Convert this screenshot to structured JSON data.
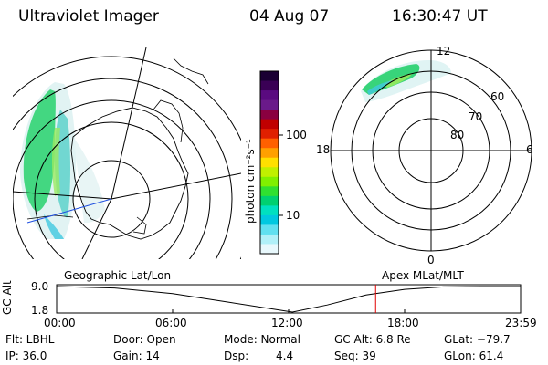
{
  "header": {
    "title": "Ultraviolet Imager",
    "date": "04 Aug 07",
    "time": "16:30:47 UT"
  },
  "left_panel": {
    "label": "Geographic Lat/Lon"
  },
  "right_panel": {
    "label": "Apex MLat/MLT",
    "mlt_labels": [
      "12",
      "18",
      "6",
      "0"
    ],
    "lat_labels": [
      "60",
      "70",
      "80"
    ]
  },
  "colorbar": {
    "unit_label": "photon cm⁻²s⁻¹",
    "ticks": [
      "100",
      "10"
    ],
    "colors": [
      "#1a0033",
      "#3a0055",
      "#5a0a80",
      "#6a1a8a",
      "#8a0040",
      "#c00000",
      "#e02000",
      "#ff6000",
      "#ffa000",
      "#ffe000",
      "#c0f000",
      "#80f000",
      "#30e030",
      "#00d070",
      "#00e0c0",
      "#00c8e0",
      "#60e0f0",
      "#b0f0f8",
      "#e8f8fc"
    ]
  },
  "altitude_plot": {
    "ylabel": "GC Alt",
    "ytick_top": "9.0",
    "ytick_bottom": "1.8",
    "xticks": [
      "00:00",
      "06:00",
      "12:00",
      "18:00",
      "23:59"
    ],
    "series": [
      {
        "x_hours": [
          0,
          3,
          6,
          9,
          12.2,
          14,
          16,
          18,
          20,
          22,
          24
        ],
        "alt_re": [
          9.0,
          8.6,
          7.0,
          4.5,
          1.8,
          3.8,
          6.6,
          8.2,
          8.9,
          9.0,
          9.0
        ]
      }
    ],
    "marker_hour": 16.5,
    "marker_color": "#e00000"
  },
  "info": {
    "flt": "Flt: LBHL",
    "ip": "IP: 36.0",
    "door": "Door: Open",
    "gain": "Gain: 14",
    "mode": "Mode: Normal",
    "dsp_label": "Dsp:",
    "dsp_value": "4.4",
    "gc_alt": "GC Alt: 6.8 Re",
    "seq": "Seq: 39",
    "glat": "GLat: −79.7",
    "glon": "GLon:  61.4"
  }
}
